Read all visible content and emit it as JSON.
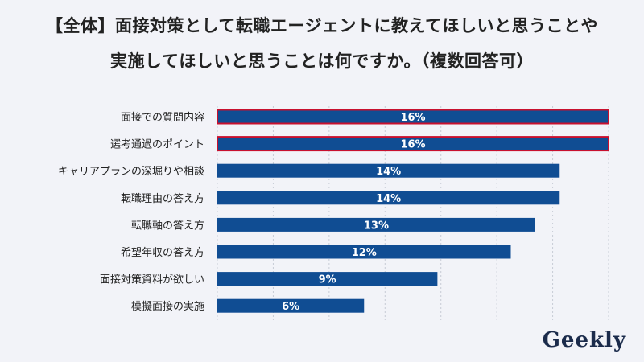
{
  "title_lines": [
    "【全体】面接対策として転職エージェントに教えてほしいと思うことや",
    "実施してほしいと思うことは何ですか。（複数回答可）"
  ],
  "logo": "Geekly",
  "colors": {
    "background": "#f2f3f8",
    "bar": "#104d93",
    "highlight_border": "#c8102e",
    "grid": "#c8ccd6"
  },
  "chart_data": {
    "type": "bar",
    "orientation": "horizontal",
    "categories": [
      "面接での質問内容",
      "選考通過のポイント",
      "キャリアプランの深堀りや相談",
      "転職理由の答え方",
      "転職軸の答え方",
      "希望年収の答え方",
      "面接対策資料が欲しい",
      "模擬面接の実施"
    ],
    "values": [
      16,
      16,
      14,
      14,
      13,
      12,
      9,
      6
    ],
    "value_labels": [
      "16%",
      "16%",
      "14%",
      "14%",
      "13%",
      "12%",
      "9%",
      "6%"
    ],
    "highlighted": [
      true,
      true,
      false,
      false,
      false,
      false,
      false,
      false
    ],
    "xlim": [
      0,
      16
    ],
    "grid": "vertical dashed",
    "title": "【全体】面接対策として転職エージェントに教えてほしいと思うことや実施してほしいと思うことは何ですか。（複数回答可）"
  }
}
